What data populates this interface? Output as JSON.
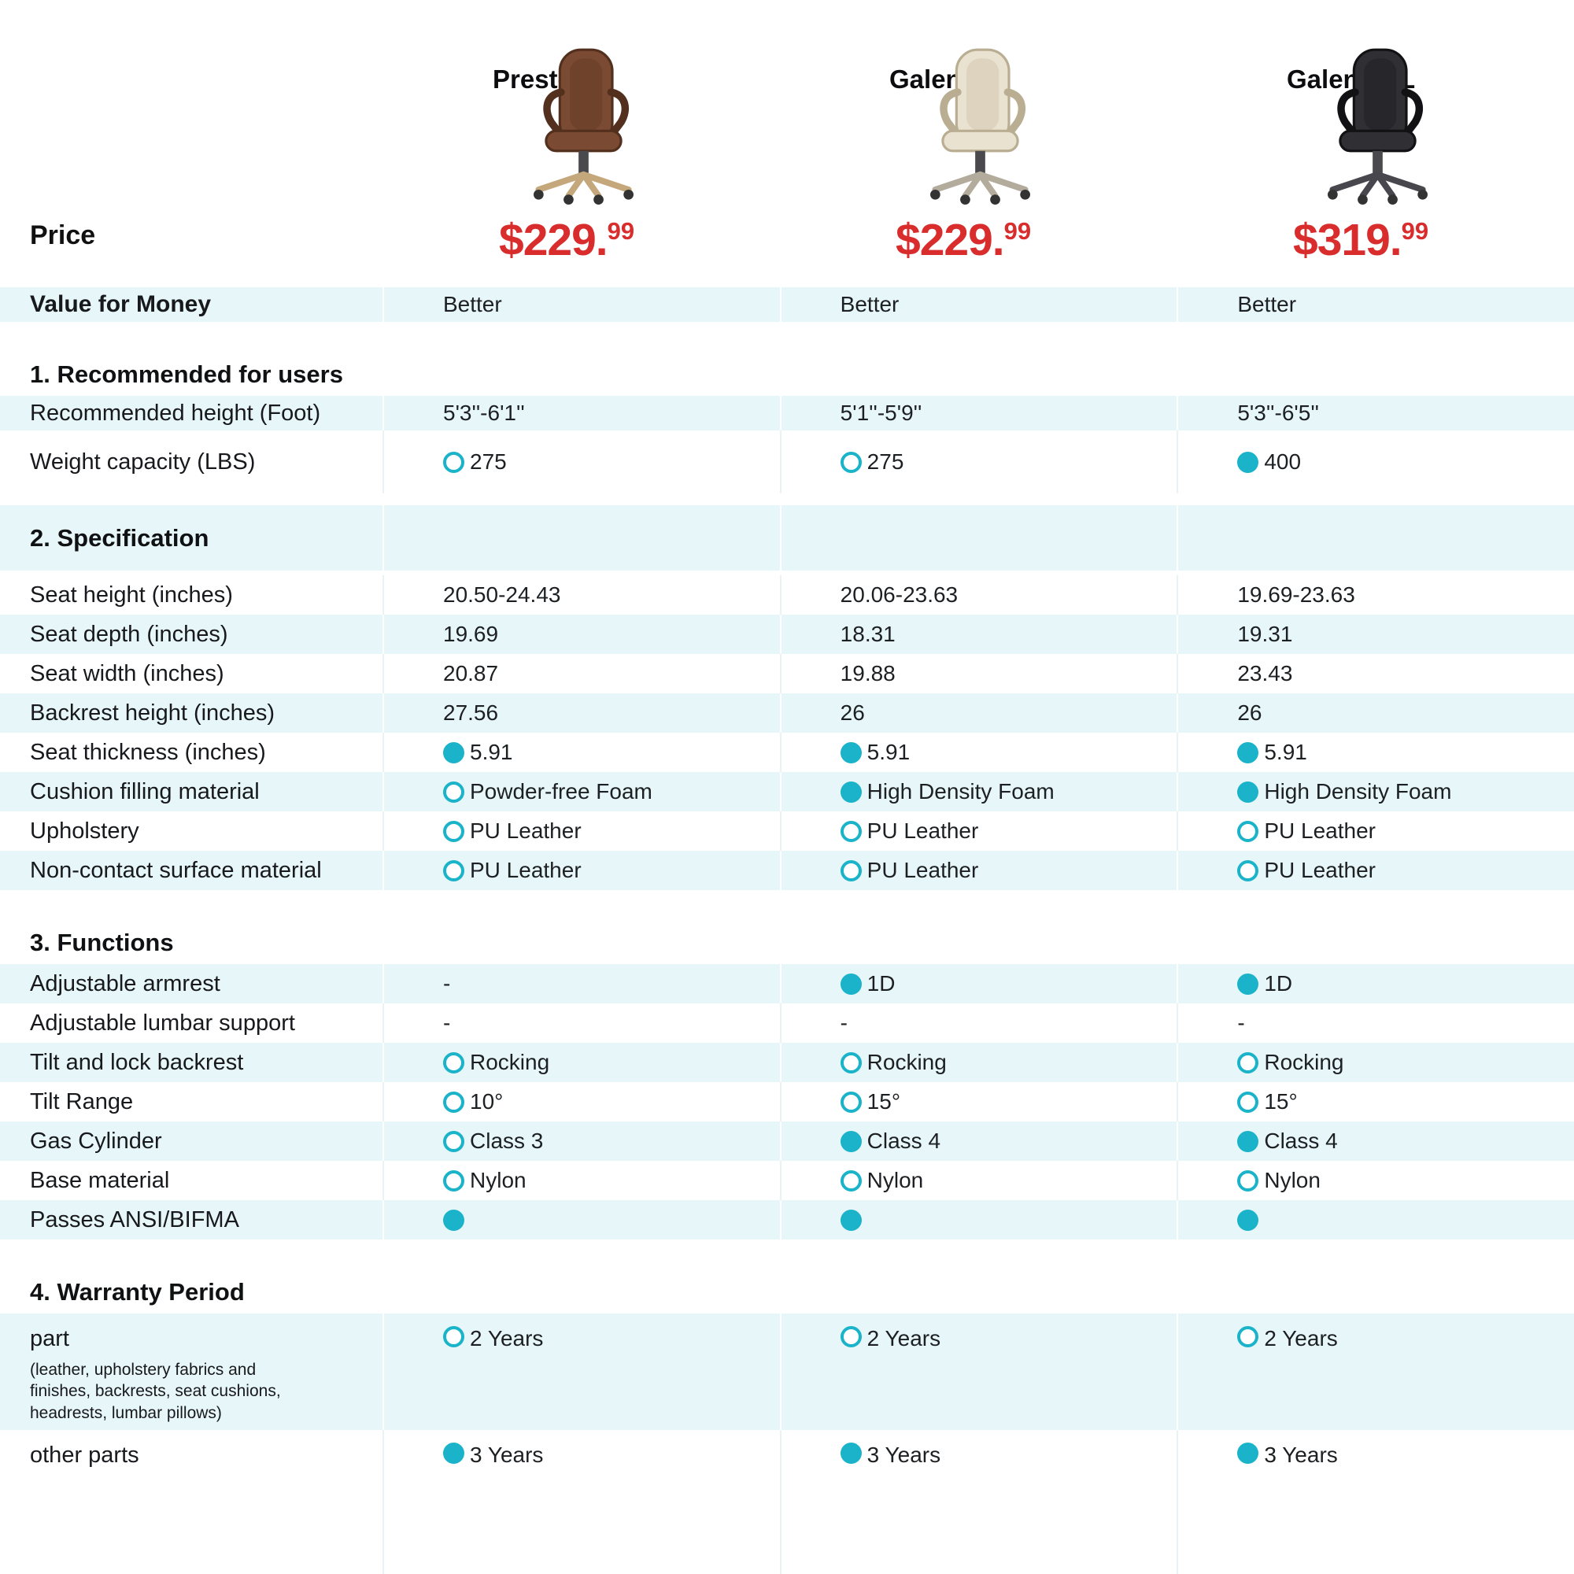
{
  "colors": {
    "accent_teal": "#1ab3c9",
    "row_highlight": "#e7f6f9",
    "price_red": "#d92c2c"
  },
  "header": {
    "price_label": "Price",
    "products": [
      {
        "name": "Preston",
        "price_main": "$229.",
        "price_cents": "99",
        "chair_color": "#7b4a33",
        "chair_dark": "#53301e",
        "base_color": "#c4a87c"
      },
      {
        "name": "Galene",
        "price_main": "$229.",
        "price_cents": "99",
        "chair_color": "#eae2d0",
        "chair_dark": "#b9ad92",
        "base_color": "#b3ac9d"
      },
      {
        "name": "Galene-XL",
        "price_main": "$319.",
        "price_cents": "99",
        "chair_color": "#2f2f34",
        "chair_dark": "#121215",
        "base_color": "#47474d"
      }
    ]
  },
  "value_for_money": {
    "label": "Value for Money",
    "values": [
      "Better",
      "Better",
      "Better"
    ]
  },
  "sections": [
    {
      "title": "1. Recommended for users",
      "style": "plain",
      "rows": [
        {
          "label": "Recommended height (Foot)",
          "cells": [
            {
              "text": "5'3''-6'1''"
            },
            {
              "text": "5'1''-5'9''"
            },
            {
              "text": "5'3''-6'5''"
            }
          ]
        },
        {
          "label": "Weight capacity (LBS)",
          "cells": [
            {
              "marker": "hollow",
              "text": "275"
            },
            {
              "marker": "hollow",
              "text": "275"
            },
            {
              "marker": "filled",
              "text": "400"
            }
          ]
        }
      ]
    },
    {
      "title": "2. Specification",
      "style": "banner",
      "rows": [
        {
          "label": "Seat height (inches)",
          "cells": [
            {
              "text": "20.50-24.43"
            },
            {
              "text": "20.06-23.63"
            },
            {
              "text": "19.69-23.63"
            }
          ]
        },
        {
          "label": "Seat depth (inches)",
          "cells": [
            {
              "text": "19.69"
            },
            {
              "text": "18.31"
            },
            {
              "text": "19.31"
            }
          ]
        },
        {
          "label": "Seat width (inches)",
          "cells": [
            {
              "text": "20.87"
            },
            {
              "text": "19.88"
            },
            {
              "text": "23.43"
            }
          ]
        },
        {
          "label": "Backrest height (inches)",
          "cells": [
            {
              "text": "27.56"
            },
            {
              "text": "26"
            },
            {
              "text": "26"
            }
          ]
        },
        {
          "label": "Seat thickness (inches)",
          "cells": [
            {
              "marker": "filled",
              "text": "5.91"
            },
            {
              "marker": "filled",
              "text": "5.91"
            },
            {
              "marker": "filled",
              "text": "5.91"
            }
          ]
        },
        {
          "label": "Cushion filling material",
          "cells": [
            {
              "marker": "hollow",
              "text": "Powder-free Foam"
            },
            {
              "marker": "filled",
              "text": "High Density Foam"
            },
            {
              "marker": "filled",
              "text": "High Density Foam"
            }
          ]
        },
        {
          "label": "Upholstery",
          "cells": [
            {
              "marker": "hollow",
              "text": "PU Leather"
            },
            {
              "marker": "hollow",
              "text": "PU Leather"
            },
            {
              "marker": "hollow",
              "text": "PU Leather"
            }
          ]
        },
        {
          "label": "Non-contact surface material",
          "cells": [
            {
              "marker": "hollow",
              "text": "PU Leather"
            },
            {
              "marker": "hollow",
              "text": "PU Leather"
            },
            {
              "marker": "hollow",
              "text": "PU Leather"
            }
          ]
        }
      ]
    },
    {
      "title": "3. Functions",
      "style": "plain",
      "rows": [
        {
          "label": "Adjustable armrest",
          "cells": [
            {
              "text": "-"
            },
            {
              "marker": "filled",
              "text": "1D"
            },
            {
              "marker": "filled",
              "text": "1D"
            }
          ]
        },
        {
          "label": "Adjustable lumbar support",
          "cells": [
            {
              "text": "-"
            },
            {
              "text": "-"
            },
            {
              "text": "-"
            }
          ]
        },
        {
          "label": "Tilt and lock backrest",
          "cells": [
            {
              "marker": "hollow",
              "text": "Rocking"
            },
            {
              "marker": "hollow",
              "text": "Rocking"
            },
            {
              "marker": "hollow",
              "text": "Rocking"
            }
          ]
        },
        {
          "label": "Tilt Range",
          "cells": [
            {
              "marker": "hollow",
              "text": "10°"
            },
            {
              "marker": "hollow",
              "text": "15°"
            },
            {
              "marker": "hollow",
              "text": "15°"
            }
          ]
        },
        {
          "label": "Gas Cylinder",
          "cells": [
            {
              "marker": "hollow",
              "text": "Class 3"
            },
            {
              "marker": "filled",
              "text": "Class 4"
            },
            {
              "marker": "filled",
              "text": "Class 4"
            }
          ]
        },
        {
          "label": "Base material",
          "cells": [
            {
              "marker": "hollow",
              "text": "Nylon"
            },
            {
              "marker": "hollow",
              "text": "Nylon"
            },
            {
              "marker": "hollow",
              "text": "Nylon"
            }
          ]
        },
        {
          "label": "Passes ANSI/BIFMA",
          "cells": [
            {
              "marker": "filled",
              "text": ""
            },
            {
              "marker": "filled",
              "text": ""
            },
            {
              "marker": "filled",
              "text": ""
            }
          ]
        }
      ]
    },
    {
      "title": "4. Warranty Period",
      "style": "plain",
      "rows": [
        {
          "label": "part",
          "note": "(leather, upholstery fabrics and finishes, backrests, seat cushions, headrests, lumbar pillows)",
          "cells": [
            {
              "marker": "hollow",
              "text": "2 Years"
            },
            {
              "marker": "hollow",
              "text": "2 Years"
            },
            {
              "marker": "hollow",
              "text": "2 Years"
            }
          ]
        },
        {
          "label": "other parts",
          "cells": [
            {
              "marker": "filled",
              "text": "3 Years"
            },
            {
              "marker": "filled",
              "text": "3 Years"
            },
            {
              "marker": "filled",
              "text": "3 Years"
            }
          ]
        }
      ]
    }
  ]
}
